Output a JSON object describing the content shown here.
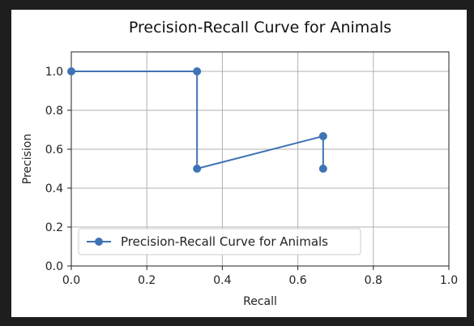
{
  "chart_data": {
    "type": "line",
    "title": "Precision-Recall Curve for Animals",
    "xlabel": "Recall",
    "ylabel": "Precision",
    "xlim": [
      0.0,
      1.0
    ],
    "ylim": [
      0.0,
      1.1
    ],
    "xticks": [
      0.0,
      0.2,
      0.4,
      0.6,
      0.8,
      1.0
    ],
    "yticks": [
      0.0,
      0.2,
      0.4,
      0.6,
      0.8,
      1.0
    ],
    "xtick_labels": [
      "0.0",
      "0.2",
      "0.4",
      "0.6",
      "0.8",
      "1.0"
    ],
    "ytick_labels": [
      "0.0",
      "0.2",
      "0.4",
      "0.6",
      "0.8",
      "1.0"
    ],
    "grid": true,
    "legend_position": "lower-left",
    "series": [
      {
        "name": "Precision-Recall Curve for Animals",
        "color": "#3e73b5",
        "marker": "circle",
        "points": [
          {
            "x": 0.0,
            "y": 1.0
          },
          {
            "x": 0.333,
            "y": 1.0
          },
          {
            "x": 0.333,
            "y": 0.5
          },
          {
            "x": 0.667,
            "y": 0.667
          },
          {
            "x": 0.667,
            "y": 0.5
          }
        ]
      }
    ]
  }
}
